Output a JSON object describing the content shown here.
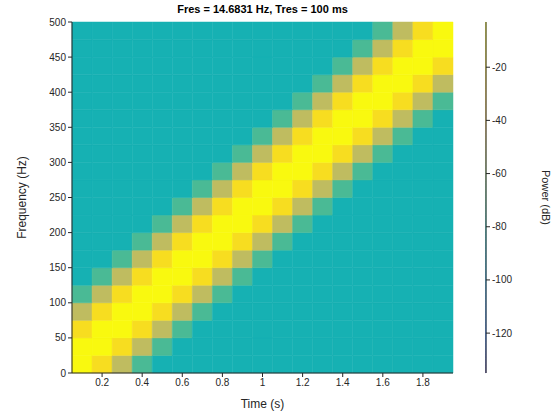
{
  "chart_data": {
    "type": "heatmap",
    "title": "Fres = 14.6831 Hz, Tres = 100 ms",
    "x_label": "Time (s)",
    "y_label": "Frequency (Hz)",
    "xlim": [
      0.05,
      1.95
    ],
    "xticks": [
      0.2,
      0.4,
      0.6,
      0.8,
      1,
      1.2,
      1.4,
      1.6,
      1.8
    ],
    "ylim": [
      0,
      500
    ],
    "yticks": [
      0,
      50,
      100,
      150,
      200,
      250,
      300,
      350,
      400,
      450,
      500
    ],
    "time_edges": [
      0.05,
      0.15,
      0.25,
      0.35,
      0.45,
      0.55,
      0.65,
      0.75,
      0.85,
      0.95,
      1.05,
      1.15,
      1.25,
      1.35,
      1.45,
      1.55,
      1.65,
      1.75,
      1.85,
      1.95
    ],
    "frequency_edges": [
      0,
      25,
      50,
      75,
      100,
      125,
      150,
      175,
      200,
      225,
      250,
      275,
      300,
      325,
      350,
      375,
      400,
      425,
      450,
      475,
      500
    ],
    "power": [
      [
        -4,
        -20,
        -50,
        -72,
        -82,
        -82,
        -82,
        -82,
        -82,
        -82,
        -82,
        -82,
        -82,
        -82,
        -82,
        -82,
        -82,
        -82,
        -82
      ],
      [
        -4,
        -4,
        -20,
        -50,
        -72,
        -82,
        -82,
        -82,
        -82,
        -82,
        -82,
        -82,
        -82,
        -82,
        -82,
        -82,
        -82,
        -82,
        -82
      ],
      [
        -20,
        -4,
        -4,
        -20,
        -50,
        -72,
        -82,
        -82,
        -82,
        -82,
        -82,
        -82,
        -82,
        -82,
        -82,
        -82,
        -82,
        -82,
        -82
      ],
      [
        -50,
        -20,
        -4,
        -4,
        -20,
        -50,
        -72,
        -82,
        -82,
        -82,
        -82,
        -82,
        -82,
        -82,
        -82,
        -82,
        -82,
        -82,
        -82
      ],
      [
        -72,
        -50,
        -20,
        -4,
        -4,
        -20,
        -50,
        -72,
        -82,
        -82,
        -82,
        -82,
        -82,
        -82,
        -82,
        -82,
        -82,
        -82,
        -82
      ],
      [
        -82,
        -72,
        -50,
        -20,
        -4,
        -4,
        -20,
        -50,
        -72,
        -82,
        -82,
        -82,
        -82,
        -82,
        -82,
        -82,
        -82,
        -82,
        -82
      ],
      [
        -82,
        -82,
        -72,
        -50,
        -20,
        -4,
        -4,
        -20,
        -50,
        -72,
        -82,
        -82,
        -82,
        -82,
        -82,
        -82,
        -82,
        -82,
        -82
      ],
      [
        -82,
        -82,
        -82,
        -72,
        -50,
        -20,
        -4,
        -4,
        -20,
        -50,
        -72,
        -82,
        -82,
        -82,
        -82,
        -82,
        -82,
        -82,
        -82
      ],
      [
        -82,
        -82,
        -82,
        -82,
        -72,
        -50,
        -20,
        -4,
        -4,
        -20,
        -50,
        -72,
        -82,
        -82,
        -82,
        -82,
        -82,
        -82,
        -82
      ],
      [
        -82,
        -82,
        -82,
        -82,
        -82,
        -72,
        -50,
        -20,
        -4,
        -4,
        -20,
        -50,
        -72,
        -82,
        -82,
        -82,
        -82,
        -82,
        -82
      ],
      [
        -82,
        -82,
        -82,
        -82,
        -82,
        -82,
        -72,
        -50,
        -20,
        -4,
        -4,
        -20,
        -50,
        -72,
        -82,
        -82,
        -82,
        -82,
        -82
      ],
      [
        -82,
        -82,
        -82,
        -82,
        -82,
        -82,
        -82,
        -72,
        -50,
        -20,
        -4,
        -4,
        -20,
        -50,
        -72,
        -82,
        -82,
        -82,
        -82
      ],
      [
        -82,
        -82,
        -82,
        -82,
        -82,
        -82,
        -82,
        -82,
        -72,
        -50,
        -20,
        -4,
        -4,
        -20,
        -50,
        -72,
        -82,
        -82,
        -82
      ],
      [
        -82,
        -82,
        -82,
        -82,
        -82,
        -82,
        -82,
        -82,
        -82,
        -72,
        -50,
        -20,
        -4,
        -4,
        -20,
        -50,
        -72,
        -82,
        -82
      ],
      [
        -82,
        -82,
        -82,
        -82,
        -82,
        -82,
        -82,
        -82,
        -82,
        -82,
        -72,
        -50,
        -20,
        -4,
        -4,
        -20,
        -50,
        -72,
        -82
      ],
      [
        -82,
        -82,
        -82,
        -82,
        -82,
        -82,
        -82,
        -82,
        -82,
        -82,
        -82,
        -72,
        -50,
        -20,
        -4,
        -4,
        -20,
        -50,
        -72
      ],
      [
        -82,
        -82,
        -82,
        -82,
        -82,
        -82,
        -82,
        -82,
        -82,
        -82,
        -82,
        -82,
        -72,
        -50,
        -20,
        -4,
        -4,
        -20,
        -50
      ],
      [
        -82,
        -82,
        -82,
        -82,
        -82,
        -82,
        -82,
        -82,
        -82,
        -82,
        -82,
        -82,
        -82,
        -72,
        -50,
        -20,
        -4,
        -4,
        -20
      ],
      [
        -82,
        -82,
        -82,
        -82,
        -82,
        -82,
        -82,
        -82,
        -82,
        -82,
        -82,
        -82,
        -82,
        -82,
        -72,
        -50,
        -20,
        -4,
        -4
      ],
      [
        -82,
        -82,
        -82,
        -82,
        -82,
        -82,
        -82,
        -82,
        -82,
        -82,
        -82,
        -82,
        -82,
        -82,
        -82,
        -72,
        -50,
        -20,
        -4
      ]
    ],
    "colorbar": {
      "label": "Power (dB)",
      "lim": [
        -135,
        -3
      ],
      "ticks": [
        -120,
        -100,
        -80,
        -60,
        -40,
        -20
      ]
    }
  }
}
